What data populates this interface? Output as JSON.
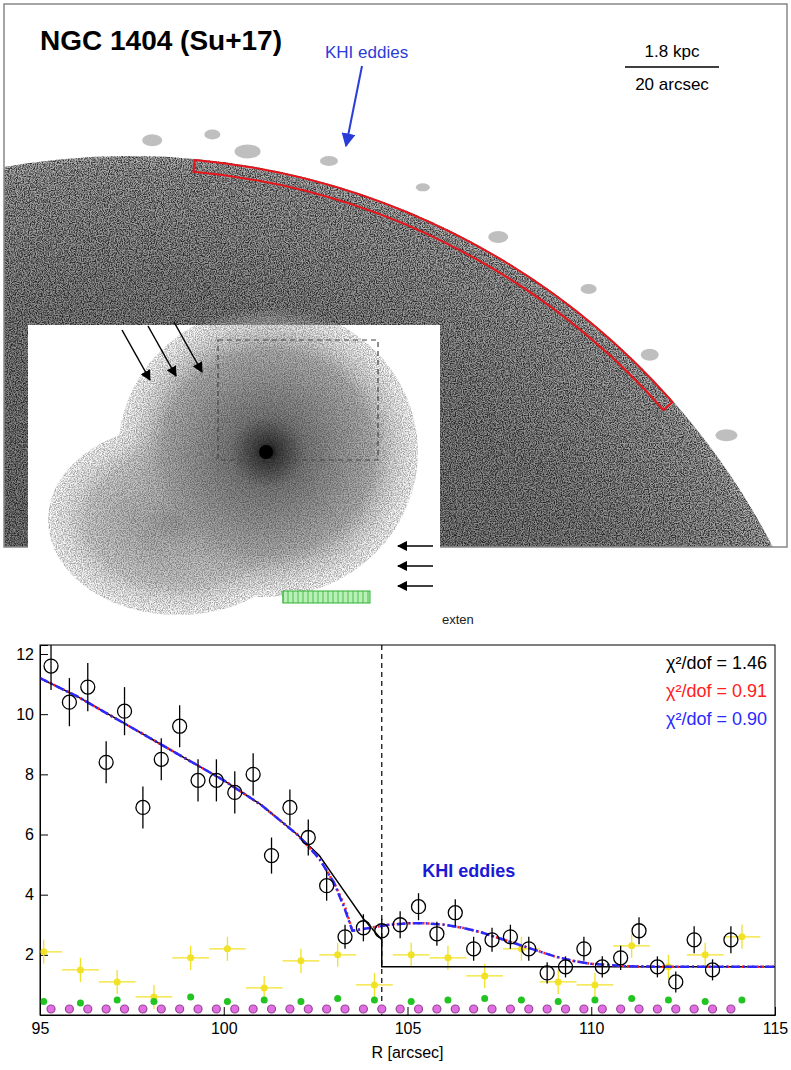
{
  "image": {
    "title": "NGC 1404 (Su+17)",
    "annotation": "KHI eddies",
    "scale_bar": {
      "length": "1.8 kpc",
      "angle": "20 arcsec"
    },
    "inset_label": "exten"
  },
  "chart_data": {
    "type": "scatter",
    "x_label": "R [arcsec]",
    "xlim": [
      95,
      115
    ],
    "xticks": [
      95,
      100,
      105,
      110,
      115
    ],
    "ylim": [
      0,
      12.3
    ],
    "yticks": [
      2,
      4,
      6,
      8,
      10,
      12
    ],
    "legend": "upper right",
    "vline": 104.3,
    "annotations": [
      {
        "text": "KHI eddies",
        "x": 105.4,
        "y": 4.6,
        "color": "#1a1ad6"
      }
    ],
    "series": [
      {
        "type": "scatter",
        "marker": "dot",
        "color": "#f2e227",
        "x": [
          95.1,
          96.1,
          97.1,
          98.1,
          99.1,
          100.1,
          101.1,
          102.1,
          103.1,
          104.1,
          105.1,
          106.1,
          107.1,
          108.1,
          109.1,
          110.1,
          111.1,
          112.1,
          113.1,
          114.1
        ],
        "values": [
          2.1,
          1.5,
          1.1,
          0.6,
          1.9,
          2.2,
          0.9,
          1.8,
          2.0,
          1.0,
          2.0,
          1.9,
          1.3,
          2.2,
          1.1,
          1.0,
          2.3,
          1.6,
          2.0,
          2.6
        ],
        "errors": [
          0.4,
          0.4,
          0.4,
          0.4,
          0.4,
          0.4,
          0.4,
          0.4,
          0.4,
          0.4,
          0.4,
          0.4,
          0.4,
          0.4,
          0.4,
          0.4,
          0.4,
          0.4,
          0.4,
          0.4
        ],
        "x_errors": [
          0.5,
          0.5,
          0.5,
          0.5,
          0.5,
          0.5,
          0.5,
          0.5,
          0.5,
          0.5,
          0.5,
          0.5,
          0.5,
          0.5,
          0.5,
          0.5,
          0.5,
          0.5,
          0.5,
          0.5
        ]
      },
      {
        "type": "scatter",
        "marker": "dot",
        "color": "#22c422",
        "x": [
          95.1,
          96.1,
          97.1,
          98.1,
          99.1,
          100.1,
          101.1,
          102.1,
          103.1,
          104.1,
          105.1,
          106.1,
          107.1,
          108.1,
          109.1,
          110.1,
          111.1,
          112.1,
          113.1,
          114.1
        ],
        "values": [
          0.45,
          0.4,
          0.5,
          0.45,
          0.6,
          0.45,
          0.5,
          0.45,
          0.55,
          0.5,
          0.45,
          0.5,
          0.55,
          0.5,
          0.45,
          0.5,
          0.55,
          0.5,
          0.45,
          0.5
        ],
        "errors": [
          0.05,
          0.05,
          0.05,
          0.05,
          0.05,
          0.05,
          0.05,
          0.05,
          0.05,
          0.05,
          0.05,
          0.05,
          0.05,
          0.05,
          0.05,
          0.05,
          0.05,
          0.05,
          0.05,
          0.05
        ]
      },
      {
        "type": "scatter",
        "marker": "circle",
        "color": "#e36ee3",
        "x": [
          95.3,
          95.8,
          96.3,
          96.8,
          97.3,
          97.8,
          98.3,
          98.8,
          99.3,
          99.8,
          100.3,
          100.8,
          101.3,
          101.8,
          102.3,
          102.8,
          103.3,
          103.8,
          104.3,
          104.8,
          105.3,
          105.8,
          106.3,
          106.8,
          107.3,
          107.8,
          108.3,
          108.8,
          109.3,
          109.8,
          110.3,
          110.8,
          111.3,
          111.8,
          112.3,
          112.8,
          113.3,
          113.8
        ],
        "values": [
          0.2,
          0.2,
          0.2,
          0.2,
          0.2,
          0.2,
          0.2,
          0.2,
          0.2,
          0.2,
          0.2,
          0.2,
          0.2,
          0.2,
          0.2,
          0.2,
          0.2,
          0.2,
          0.2,
          0.2,
          0.2,
          0.2,
          0.2,
          0.2,
          0.2,
          0.2,
          0.2,
          0.2,
          0.2,
          0.2,
          0.2,
          0.2,
          0.2,
          0.2,
          0.2,
          0.2,
          0.2,
          0.2
        ]
      },
      {
        "name": "χ²/dof = 1.46",
        "type": "line",
        "line_style": "solid",
        "color": "#000000",
        "x": [
          95,
          96,
          97,
          98,
          99,
          100,
          101,
          102,
          102.6,
          103,
          103.4,
          103.8,
          104.3,
          104.3,
          115
        ],
        "values": [
          11.2,
          10.6,
          9.9,
          9.2,
          8.5,
          7.8,
          7.0,
          6.0,
          5.3,
          4.6,
          3.9,
          3.2,
          2.5,
          1.6,
          1.6
        ]
      },
      {
        "name": "χ²/dof = 0.91",
        "type": "line",
        "line_style": "dotted",
        "color": "#ff2020",
        "x": [
          95,
          96,
          97,
          98,
          99,
          100,
          101,
          102,
          102.6,
          103,
          103.3,
          103.5,
          104,
          104.5,
          105,
          105.5,
          106,
          106.5,
          107,
          107.5,
          108,
          108.5,
          109,
          109.5,
          110,
          111,
          112,
          115
        ],
        "values": [
          11.2,
          10.6,
          9.9,
          9.2,
          8.5,
          7.8,
          7.0,
          6.0,
          5.2,
          4.4,
          3.6,
          2.8,
          2.9,
          3.0,
          3.05,
          3.05,
          3.0,
          2.9,
          2.75,
          2.55,
          2.35,
          2.15,
          1.95,
          1.8,
          1.7,
          1.62,
          1.6,
          1.6
        ]
      },
      {
        "name": "χ²/dof = 0.90",
        "type": "line",
        "line_style": "dashdot",
        "color": "#2a2aff",
        "x": [
          95,
          96,
          97,
          98,
          99,
          100,
          101,
          102,
          102.6,
          103,
          103.3,
          103.5,
          104,
          104.5,
          105,
          105.5,
          106,
          106.5,
          107,
          107.5,
          108,
          108.5,
          109,
          109.5,
          110,
          111,
          112,
          115
        ],
        "values": [
          11.2,
          10.6,
          9.9,
          9.2,
          8.5,
          7.8,
          7.0,
          6.0,
          5.2,
          4.4,
          3.5,
          2.8,
          2.9,
          3.0,
          3.05,
          3.05,
          3.0,
          2.9,
          2.75,
          2.55,
          2.35,
          2.15,
          1.95,
          1.8,
          1.7,
          1.62,
          1.6,
          1.6
        ]
      },
      {
        "type": "scatter",
        "marker": "open-circle",
        "color": "#000000",
        "x": [
          95.3,
          95.8,
          96.3,
          96.8,
          97.3,
          97.8,
          98.3,
          98.8,
          99.3,
          99.8,
          100.3,
          100.8,
          101.3,
          101.8,
          102.3,
          102.8,
          103.3,
          103.8,
          104.3,
          104.8,
          105.3,
          105.8,
          106.3,
          106.8,
          107.3,
          107.8,
          108.3,
          108.8,
          109.3,
          109.8,
          110.3,
          110.8,
          111.3,
          111.8,
          112.3,
          112.8,
          113.3,
          113.8
        ],
        "values": [
          11.6,
          10.4,
          10.9,
          8.4,
          10.1,
          6.9,
          8.5,
          9.6,
          7.8,
          7.8,
          7.4,
          8.0,
          5.3,
          6.9,
          5.9,
          4.3,
          2.6,
          2.9,
          2.8,
          3.0,
          3.6,
          2.7,
          3.4,
          2.2,
          2.5,
          2.6,
          2.2,
          1.4,
          1.6,
          2.2,
          1.6,
          1.9,
          2.8,
          1.6,
          1.1,
          2.5,
          1.5,
          2.5
        ],
        "errors": [
          0.8,
          0.8,
          0.8,
          0.7,
          0.8,
          0.7,
          0.7,
          0.7,
          0.7,
          0.7,
          0.7,
          0.7,
          0.6,
          0.6,
          0.6,
          0.5,
          0.4,
          0.45,
          0.4,
          0.45,
          0.45,
          0.4,
          0.45,
          0.4,
          0.4,
          0.4,
          0.4,
          0.35,
          0.35,
          0.4,
          0.35,
          0.4,
          0.45,
          0.35,
          0.35,
          0.45,
          0.35,
          0.45
        ]
      }
    ]
  }
}
